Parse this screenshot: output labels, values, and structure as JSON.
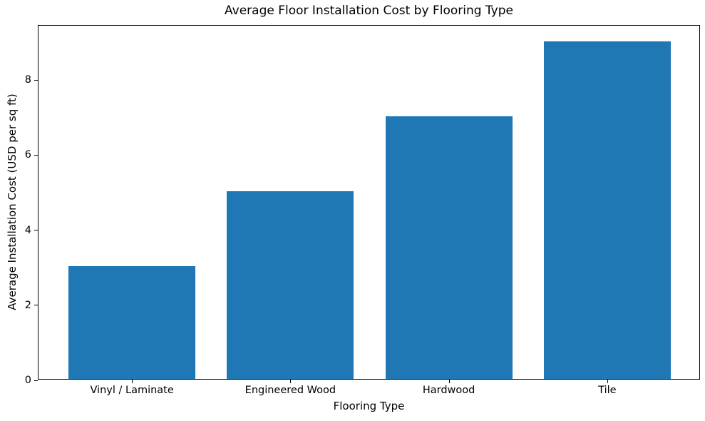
{
  "chart_data": {
    "type": "bar",
    "title": "Average Floor Installation Cost by Flooring Type",
    "xlabel": "Flooring Type",
    "ylabel": "Average Installation Cost (USD per sq ft)",
    "categories": [
      "Vinyl / Laminate",
      "Engineered Wood",
      "Hardwood",
      "Tile"
    ],
    "values": [
      3,
      5,
      7,
      9
    ],
    "yticks": [
      0,
      2,
      4,
      6,
      8
    ],
    "ylim": [
      0,
      9.45
    ],
    "xlim": [
      -0.59,
      3.59
    ],
    "bar_color": "#1f77b4",
    "bar_width_fraction": 0.8,
    "grid": false,
    "legend": false,
    "background": "#ffffff"
  }
}
